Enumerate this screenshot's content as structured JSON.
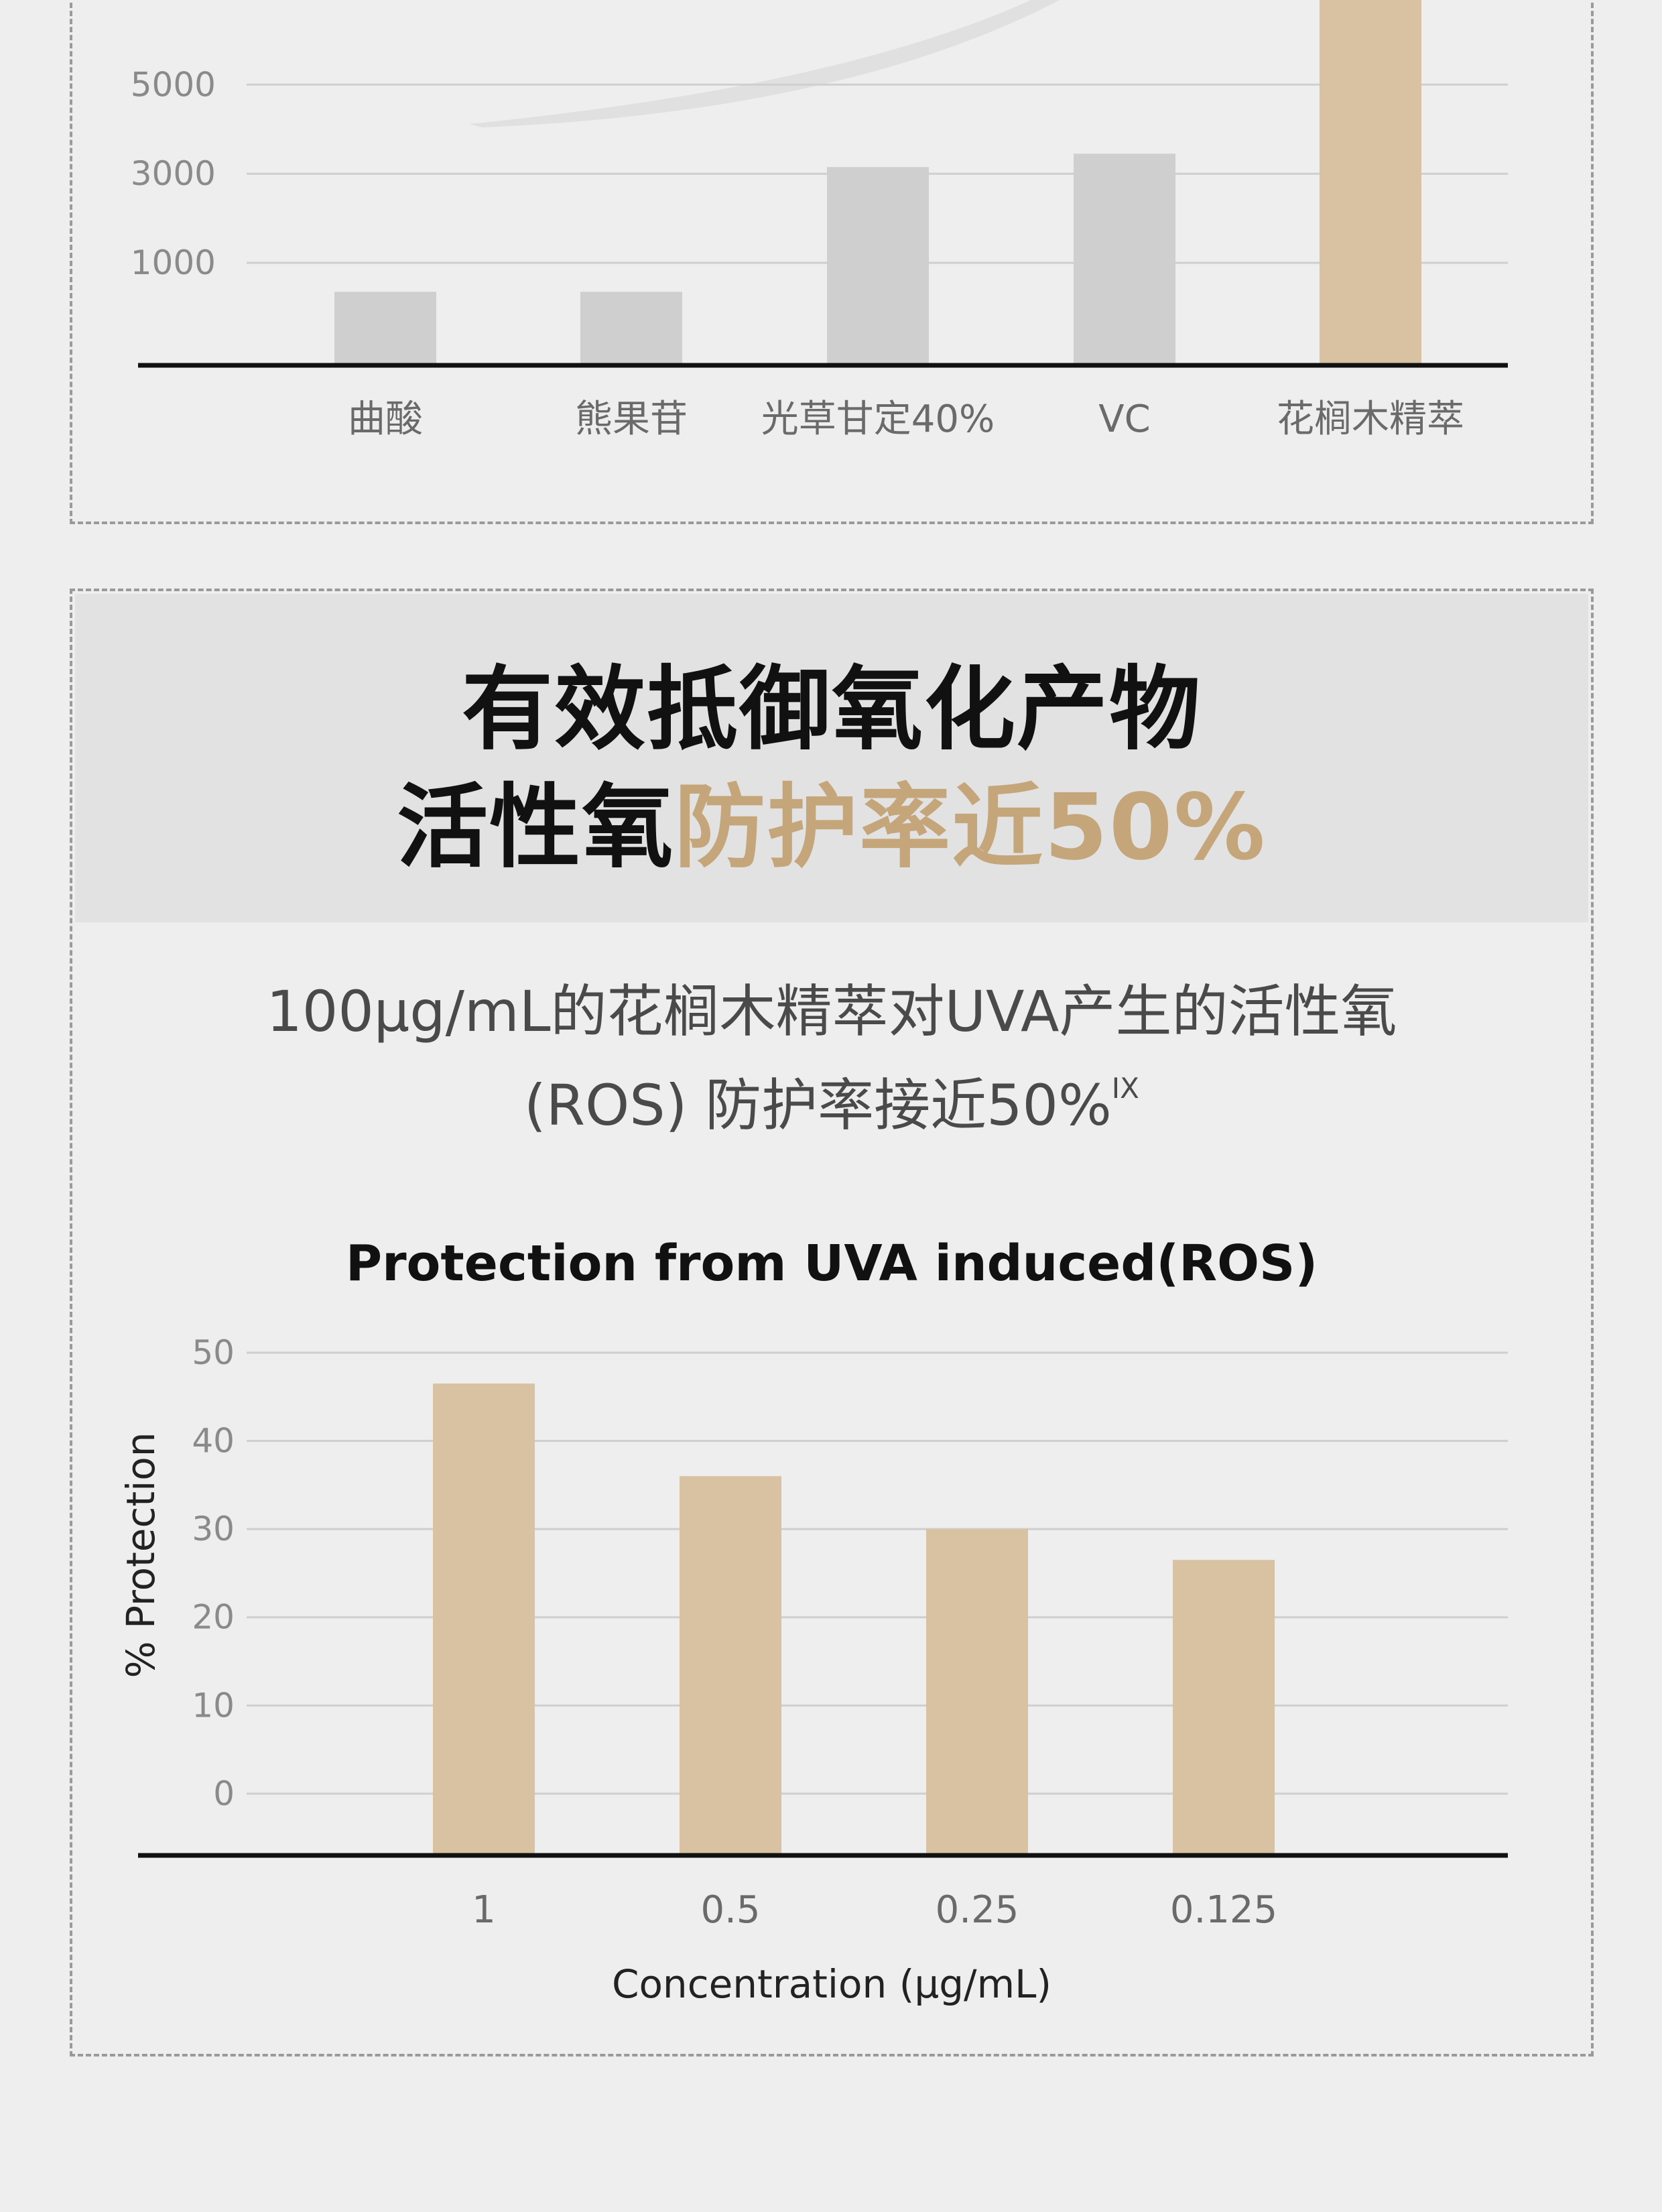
{
  "section_top": {
    "chart_data": {
      "type": "bar",
      "categories": [
        "曲酸",
        "熊果苷",
        "光草甘定40%",
        "VC",
        "花榈木精萃"
      ],
      "values": [
        350,
        350,
        3150,
        3450,
        7000
      ],
      "yticks": [
        1000,
        3000,
        5000
      ],
      "ylim": [
        -1300,
        6900
      ],
      "colors": [
        "#cfcfcf",
        "#cfcfcf",
        "#cfcfcf",
        "#cfcfcf",
        "#d8c2a2"
      ],
      "grid": true
    }
  },
  "section_bottom": {
    "headline_line1": "有效抵御氧化产物",
    "headline_line2_plain": "活性氧",
    "headline_line2_highlight": "防护率近50%",
    "desc_line1": "100μg/mL的花榈木精萃对UVA产生的活性氧",
    "desc_line2": "(ROS) 防护率接近50%",
    "desc_sup": "IX",
    "chart_data": {
      "type": "bar",
      "title": "Protection from UVA induced(ROS)",
      "xlabel": "Concentration  (μg/mL)",
      "ylabel": "% Protection",
      "categories": [
        "1",
        "0.5",
        "0.25",
        "0.125"
      ],
      "values": [
        46.5,
        36,
        30,
        26.5
      ],
      "yticks": [
        0,
        10,
        20,
        30,
        40,
        50
      ],
      "ylim": [
        -7,
        50
      ],
      "grid": true,
      "bar_color": "#d8c2a2"
    }
  },
  "colors": {
    "accent_gold": "#c5a57a",
    "bar_gold": "#d8c2a2",
    "bar_gray": "#cfcfcf"
  }
}
